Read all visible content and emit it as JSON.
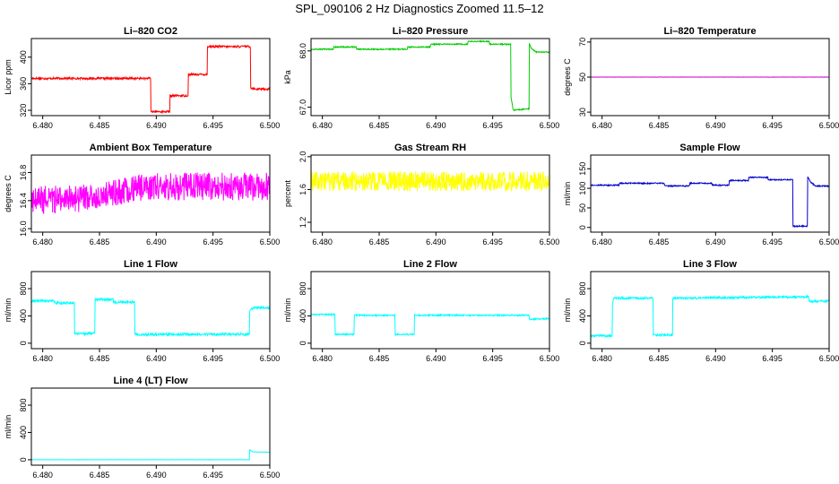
{
  "figure_title": "SPL_090106  2 Hz Diagnostics Zoomed 11.5–12",
  "chart_data": [
    {
      "type": "line",
      "title": "Li–820 CO2",
      "ylabel": "Licor ppm",
      "color": "#ff0000",
      "xlim": [
        6.479,
        6.5
      ],
      "ylim": [
        312,
        428
      ],
      "yticks": [
        320,
        360,
        400
      ],
      "ytick_labels": [
        "320",
        "360",
        "400"
      ],
      "xticks": [
        6.48,
        6.485,
        6.49,
        6.495,
        6.5
      ],
      "xtick_labels": [
        "6.480",
        "6.485",
        "6.490",
        "6.495",
        "6.500"
      ],
      "noise": 1.5,
      "x": [
        6.479,
        6.4895,
        6.4895,
        6.4912,
        6.4912,
        6.4928,
        6.4928,
        6.4945,
        6.4945,
        6.4983,
        6.4983,
        6.4987,
        6.5
      ],
      "y": [
        368,
        368,
        318,
        318,
        342,
        342,
        374,
        374,
        416,
        416,
        354,
        352,
        352
      ]
    },
    {
      "type": "line",
      "title": "Li–820 Pressure",
      "ylabel": "kPa",
      "color": "#00cc00",
      "xlim": [
        6.479,
        6.5
      ],
      "ylim": [
        66.85,
        68.22
      ],
      "yticks": [
        67.0,
        68.0
      ],
      "ytick_labels": [
        "67.0",
        "68.0"
      ],
      "xticks": [
        6.48,
        6.485,
        6.49,
        6.495,
        6.5
      ],
      "xtick_labels": [
        "6.480",
        "6.485",
        "6.490",
        "6.495",
        "6.500"
      ],
      "noise": 0.01,
      "x": [
        6.479,
        6.481,
        6.481,
        6.483,
        6.483,
        6.4875,
        6.4875,
        6.4895,
        6.4895,
        6.4928,
        6.4928,
        6.4947,
        6.4947,
        6.4966,
        6.4966,
        6.4968,
        6.4971,
        6.4982,
        6.4982,
        6.4984,
        6.4988,
        6.5
      ],
      "y": [
        68.03,
        68.03,
        68.07,
        68.07,
        68.03,
        68.03,
        68.07,
        68.07,
        68.12,
        68.12,
        68.17,
        68.17,
        68.12,
        68.12,
        67.2,
        66.95,
        66.95,
        66.97,
        68.15,
        68.05,
        67.98,
        67.98
      ]
    },
    {
      "type": "line",
      "title": "Li–820 Temperature",
      "ylabel": "degrees C",
      "color": "#cc00cc",
      "xlim": [
        6.479,
        6.5
      ],
      "ylim": [
        28,
        72
      ],
      "yticks": [
        30,
        50,
        70
      ],
      "ytick_labels": [
        "30",
        "50",
        "70"
      ],
      "xticks": [
        6.48,
        6.485,
        6.49,
        6.495,
        6.5
      ],
      "xtick_labels": [
        "6.480",
        "6.485",
        "6.490",
        "6.495",
        "6.500"
      ],
      "noise": 0.05,
      "x": [
        6.479,
        6.5
      ],
      "y": [
        50,
        50
      ]
    },
    {
      "type": "line",
      "title": "Ambient Box Temperature",
      "ylabel": "degrees C",
      "color": "#ff00ff",
      "xlim": [
        6.479,
        6.5
      ],
      "ylim": [
        15.95,
        17.05
      ],
      "yticks": [
        16.0,
        16.4,
        16.8
      ],
      "ytick_labels": [
        "16.0",
        "16.4",
        "16.8"
      ],
      "xticks": [
        6.48,
        6.485,
        6.49,
        6.495,
        6.5
      ],
      "xtick_labels": [
        "6.480",
        "6.485",
        "6.490",
        "6.495",
        "6.500"
      ],
      "noise": 0.2,
      "x": [
        6.479,
        6.485,
        6.489,
        6.5
      ],
      "y": [
        16.4,
        16.45,
        16.6,
        16.6
      ]
    },
    {
      "type": "line",
      "title": "Gas Stream RH",
      "ylabel": "percent",
      "color": "#ffff00",
      "xlim": [
        6.479,
        6.5
      ],
      "ylim": [
        1.08,
        2.02
      ],
      "yticks": [
        1.2,
        1.6,
        2.0
      ],
      "ytick_labels": [
        "1.2",
        "1.6",
        "2.0"
      ],
      "xticks": [
        6.48,
        6.485,
        6.49,
        6.495,
        6.5
      ],
      "xtick_labels": [
        "6.480",
        "6.485",
        "6.490",
        "6.495",
        "6.500"
      ],
      "noise": 0.12,
      "x": [
        6.479,
        6.5
      ],
      "y": [
        1.7,
        1.7
      ]
    },
    {
      "type": "line",
      "title": "Sample Flow",
      "ylabel": "ml/min",
      "color": "#0000cc",
      "xlim": [
        6.479,
        6.5
      ],
      "ylim": [
        -12,
        185
      ],
      "yticks": [
        0,
        50,
        100,
        150
      ],
      "ytick_labels": [
        "0",
        "50",
        "100",
        "150"
      ],
      "xticks": [
        6.48,
        6.485,
        6.49,
        6.495,
        6.5
      ],
      "xtick_labels": [
        "6.480",
        "6.485",
        "6.490",
        "6.495",
        "6.500"
      ],
      "noise": 1.5,
      "x": [
        6.479,
        6.4815,
        6.4815,
        6.4855,
        6.4855,
        6.4877,
        6.4877,
        6.4897,
        6.4897,
        6.4912,
        6.4912,
        6.4929,
        6.4929,
        6.4946,
        6.4946,
        6.4968,
        6.4968,
        6.4981,
        6.4981,
        6.4984,
        6.4988,
        6.5
      ],
      "y": [
        108,
        108,
        113,
        113,
        106,
        106,
        113,
        113,
        108,
        108,
        120,
        120,
        128,
        128,
        122,
        122,
        3,
        3,
        130,
        115,
        106,
        106
      ]
    },
    {
      "type": "line",
      "title": "Line 1 Flow",
      "ylabel": "ml/min",
      "color": "#00ffff",
      "xlim": [
        6.479,
        6.5
      ],
      "ylim": [
        -80,
        1050
      ],
      "yticks": [
        0,
        400,
        800
      ],
      "ytick_labels": [
        "0",
        "400",
        "800"
      ],
      "xticks": [
        6.48,
        6.485,
        6.49,
        6.495,
        6.5
      ],
      "xtick_labels": [
        "6.480",
        "6.485",
        "6.490",
        "6.495",
        "6.500"
      ],
      "noise": 18,
      "x": [
        6.479,
        6.481,
        6.481,
        6.4828,
        6.4828,
        6.4846,
        6.4846,
        6.4862,
        6.4862,
        6.4881,
        6.4881,
        6.4982,
        6.4982,
        6.4985,
        6.5
      ],
      "y": [
        620,
        620,
        590,
        590,
        140,
        140,
        640,
        640,
        600,
        600,
        130,
        130,
        460,
        520,
        520
      ]
    },
    {
      "type": "line",
      "title": "Line 2 Flow",
      "ylabel": "ml/min",
      "color": "#00ffff",
      "xlim": [
        6.479,
        6.5
      ],
      "ylim": [
        -80,
        1050
      ],
      "yticks": [
        0,
        400,
        800
      ],
      "ytick_labels": [
        "0",
        "400",
        "800"
      ],
      "xticks": [
        6.48,
        6.485,
        6.49,
        6.495,
        6.5
      ],
      "xtick_labels": [
        "6.480",
        "6.485",
        "6.490",
        "6.495",
        "6.500"
      ],
      "noise": 10,
      "x": [
        6.479,
        6.4811,
        6.4811,
        6.4828,
        6.4828,
        6.4864,
        6.4864,
        6.4881,
        6.4881,
        6.4982,
        6.4982,
        6.5
      ],
      "y": [
        420,
        420,
        130,
        130,
        410,
        410,
        130,
        130,
        410,
        410,
        350,
        360
      ]
    },
    {
      "type": "line",
      "title": "Line 3 Flow",
      "ylabel": "ml/min",
      "color": "#00ffff",
      "xlim": [
        6.479,
        6.5
      ],
      "ylim": [
        -80,
        1050
      ],
      "yticks": [
        0,
        400,
        800
      ],
      "ytick_labels": [
        "0",
        "400",
        "800"
      ],
      "xticks": [
        6.48,
        6.485,
        6.49,
        6.495,
        6.5
      ],
      "xtick_labels": [
        "6.480",
        "6.485",
        "6.490",
        "6.495",
        "6.500"
      ],
      "noise": 15,
      "x": [
        6.479,
        6.4809,
        6.4809,
        6.481,
        6.4845,
        6.4845,
        6.4862,
        6.4862,
        6.4982,
        6.4982,
        6.5
      ],
      "y": [
        110,
        110,
        560,
        660,
        660,
        120,
        120,
        660,
        680,
        610,
        620
      ]
    },
    {
      "type": "line",
      "title": "Line 4 (LT) Flow",
      "ylabel": "ml/min",
      "color": "#00ffff",
      "xlim": [
        6.479,
        6.5
      ],
      "ylim": [
        -80,
        1050
      ],
      "yticks": [
        0,
        400,
        800
      ],
      "ytick_labels": [
        "0",
        "400",
        "800"
      ],
      "xticks": [
        6.48,
        6.485,
        6.49,
        6.495,
        6.5
      ],
      "xtick_labels": [
        "6.480",
        "6.485",
        "6.490",
        "6.495",
        "6.500"
      ],
      "noise": 2,
      "x": [
        6.479,
        6.4982,
        6.4982,
        6.4985,
        6.5
      ],
      "y": [
        0,
        0,
        150,
        115,
        110
      ]
    }
  ]
}
